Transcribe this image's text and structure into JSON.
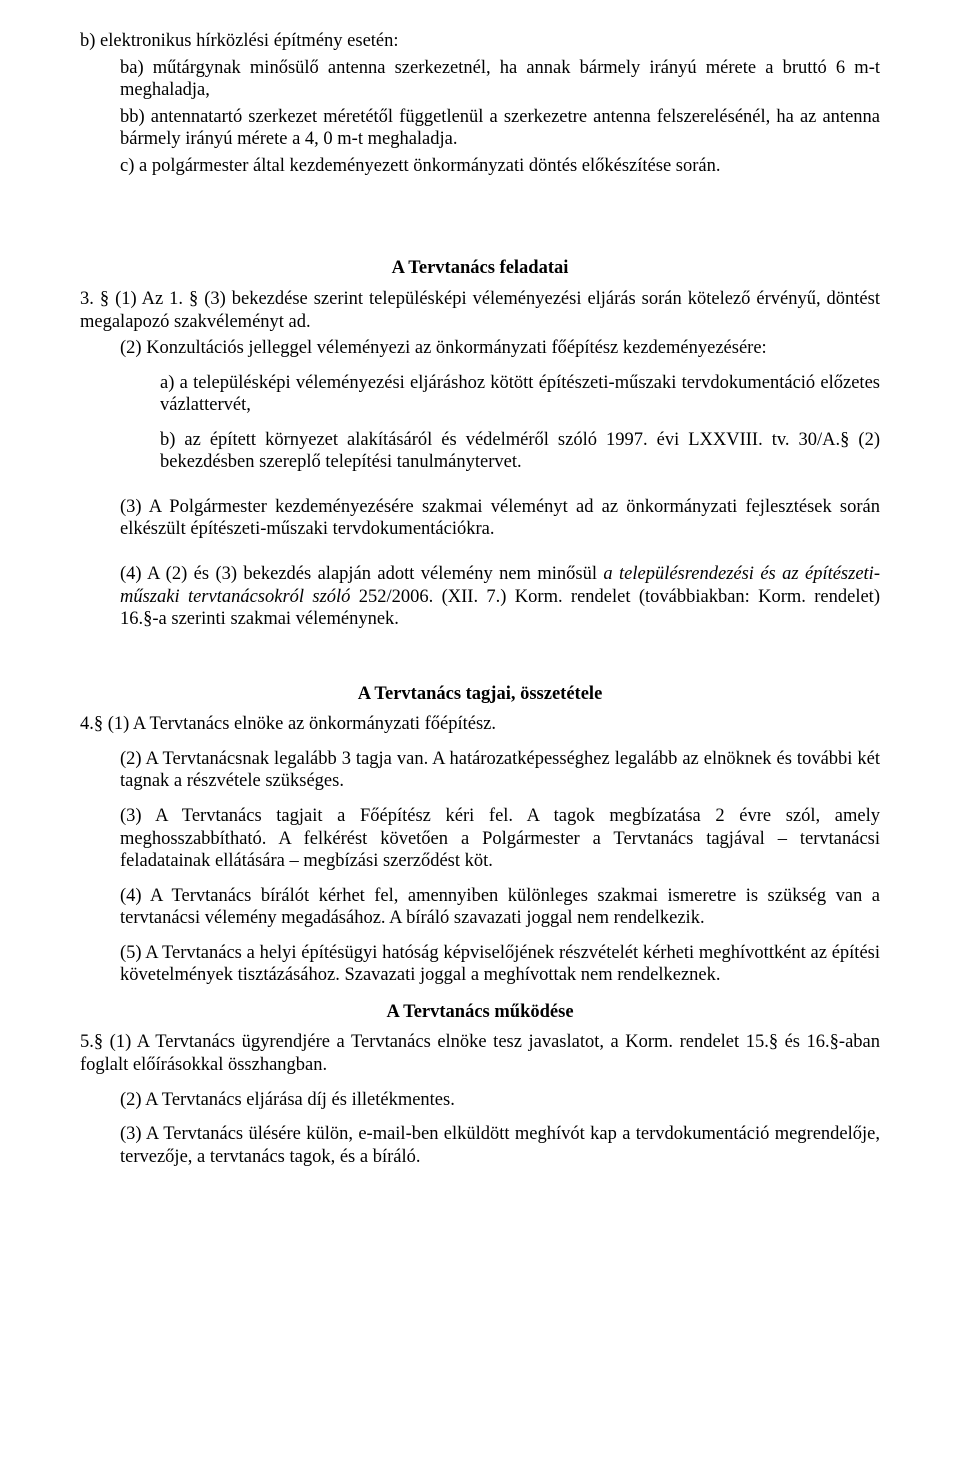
{
  "p1": "b) elektronikus hírközlési építmény esetén:",
  "p2": "ba) műtárgynak minősülő antenna szerkezetnél, ha annak bármely irányú mérete a bruttó 6 m-t meghaladja,",
  "p3": "bb) antennatartó szerkezet méretétől függetlenül a szerkezetre antenna felszerelésénél, ha az antenna bármely irányú mérete a 4, 0 m-t meghaladja.",
  "p4": "c) a polgármester által kezdeményezett önkormányzati döntés előkészítése során.",
  "h1": "A Tervtanács feladatai",
  "s3_1_lead": "3. § (1) Az 1. § ",
  "s3_1_rest": "(3) bekezdése szerint településképi véleményezési eljárás során kötelező érvényű, döntést megalapozó szakvéleményt ad.",
  "s3_2": "(2) Konzultációs jelleggel véleményezi az önkormányzati főépítész kezdeményezésére:",
  "s3_2_a": "a) a településképi véleményezési eljáráshoz kötött építészeti-műszaki tervdokumentáció előzetes vázlattervét,",
  "s3_2_b": "b) az épített környezet alakításáról és védelméről szóló 1997. évi LXXVIII. tv. 30/A.§ (2) bekezdésben szereplő telepítési tanulmánytervet.",
  "s3_3": "(3) A Polgármester kezdeményezésére szakmai véleményt ad az önkormányzati fejlesztések során elkészült építészeti-műszaki tervdokumentációkra.",
  "s3_4_a": "(4) A (2) és (3) bekezdés alapján adott vélemény nem minősül ",
  "s3_4_i": "a településrendezési és az építészeti-műszaki tervtanácsokról szóló",
  "s3_4_b": " 252/2006. (XII. 7.) Korm. rendelet (továbbiakban: Korm. rendelet) 16.§-a szerinti szakmai véleménynek.",
  "h2": "A Tervtanács tagjai, összetétele",
  "s4_1": "4.§ (1) A Tervtanács elnöke az önkormányzati főépítész.",
  "s4_2": "(2) A Tervtanácsnak legalább 3 tagja van. A határozatképességhez legalább az elnöknek és további két tagnak a részvétele szükséges.",
  "s4_3": "(3) A Tervtanács tagjait a Főépítész kéri fel. A tagok megbízatása 2 évre szól, amely meghosszabbítható. A felkérést követően a Polgármester a Tervtanács tagjával – tervtanácsi feladatainak ellátására – megbízási szerződést köt.",
  "s4_4": "(4) A Tervtanács bírálót kérhet fel, amennyiben különleges szakmai ismeretre is szükség van a tervtanácsi vélemény megadásához. A bíráló szavazati joggal nem rendelkezik.",
  "s4_5": "(5) A Tervtanács a helyi építésügyi hatóság képviselőjének részvételét kérheti meghívottként az építési követelmények tisztázásához. Szavazati joggal a meghívottak nem rendelkeznek.",
  "h3": "A Tervtanács működése",
  "s5_1": "5.§ (1) A Tervtanács ügyrendjére a Tervtanács elnöke tesz javaslatot, a Korm. rendelet 15.§ és 16.§-aban foglalt előírásokkal összhangban.",
  "s5_2": "(2) A Tervtanács eljárása díj és illetékmentes.",
  "s5_3": "(3) A Tervtanács ülésére külön, e-mail-ben elküldött meghívót kap a tervdokumentáció megrendelője, tervezője, a tervtanács tagok, és a bíráló."
}
